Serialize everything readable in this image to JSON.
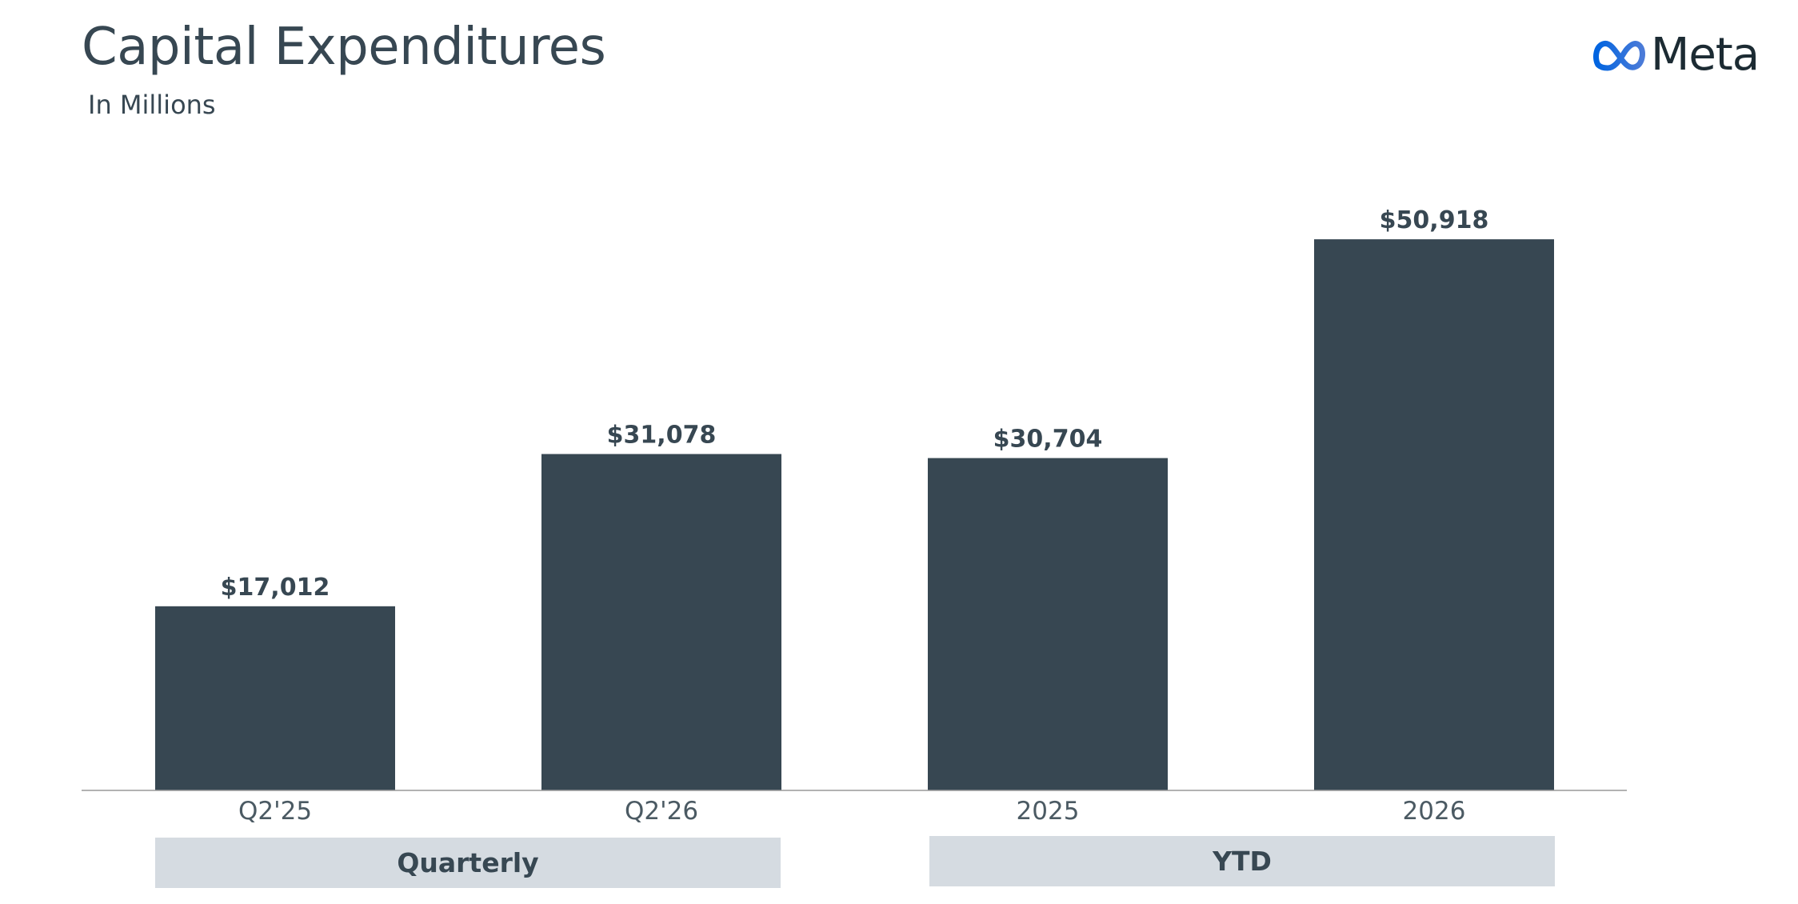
{
  "header": {
    "title": "Capital Expenditures",
    "subtitle": "In Millions",
    "logo_text": "Meta",
    "logo_icon": "meta-infinity-icon"
  },
  "colors": {
    "bar": "#374752",
    "group_box": "#d5dbe1",
    "text": "#374752",
    "axis": "#999999",
    "logo_gradient": [
      "#0064e0",
      "#4b7bd8"
    ]
  },
  "chart_data": {
    "type": "bar",
    "title": "Capital Expenditures",
    "subtitle": "In Millions",
    "categories": [
      "Q2'25",
      "Q2'26",
      "2025",
      "2026"
    ],
    "values": [
      17012,
      31078,
      30704,
      50918
    ],
    "value_labels": [
      "$17,012",
      "$31,078",
      "$30,704",
      "$50,918"
    ],
    "xlabel": "",
    "ylabel": "",
    "ylim": [
      0,
      51000
    ],
    "grid": false,
    "groups": [
      {
        "label": "Quarterly",
        "categories": [
          "Q2'25",
          "Q2'26"
        ]
      },
      {
        "label": "YTD",
        "categories": [
          "2025",
          "2026"
        ]
      }
    ]
  }
}
